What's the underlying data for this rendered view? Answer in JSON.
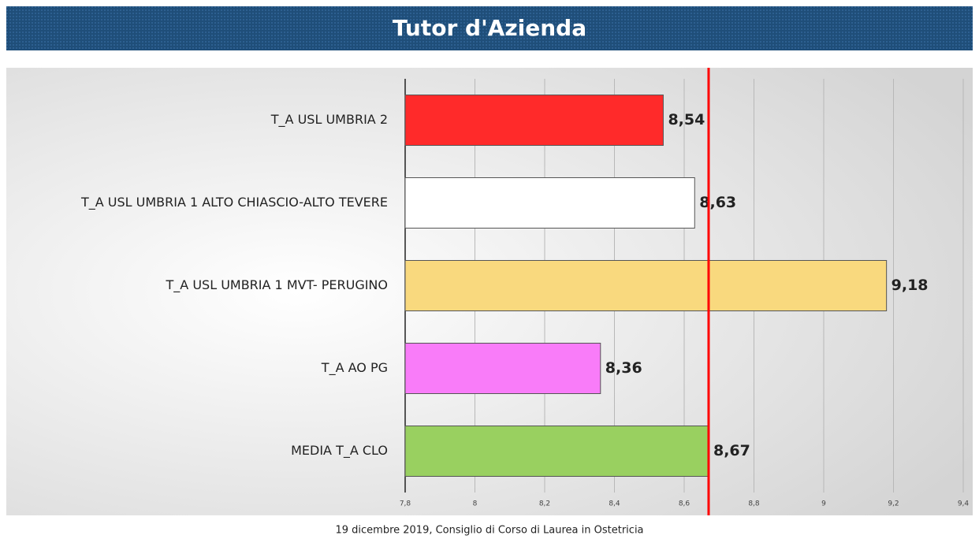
{
  "chart_data": {
    "type": "hbar",
    "title": "Tutor d'Azienda",
    "categories": [
      "T_A USL UMBRIA 2",
      "T_A USL UMBRIA 1 ALTO CHIASCIO-ALTO TEVERE",
      "T_A USL UMBRIA 1 MVT- PERUGINO",
      "T_A AO PG",
      "MEDIA T_A CLO"
    ],
    "values": [
      8.54,
      8.63,
      9.18,
      8.36,
      8.67
    ],
    "value_labels": [
      "8,54",
      "8,63",
      "9,18",
      "8,36",
      "8,67"
    ],
    "colors": [
      "#ff2a2a",
      "#ffffff",
      "#f9d97e",
      "#f97cf9",
      "#99d060"
    ],
    "xlim": [
      7.8,
      9.4
    ],
    "xticks": [
      {
        "value": 7.8,
        "label": "7,8"
      },
      8,
      {
        "value": 8.2,
        "label": "8,2"
      },
      {
        "value": 8.4,
        "label": "8,4"
      },
      {
        "value": 8.6,
        "label": "8,6"
      },
      {
        "value": 8.8,
        "label": "8,8"
      },
      9,
      {
        "value": 9.2,
        "label": "9,2"
      },
      {
        "value": 9.4,
        "label": "9,4"
      }
    ],
    "grid": true,
    "reference_line": 8.67,
    "reference_color": "#ff0000",
    "footer": "19 dicembre 2019, Consiglio di Corso di Laurea in Ostetricia"
  }
}
